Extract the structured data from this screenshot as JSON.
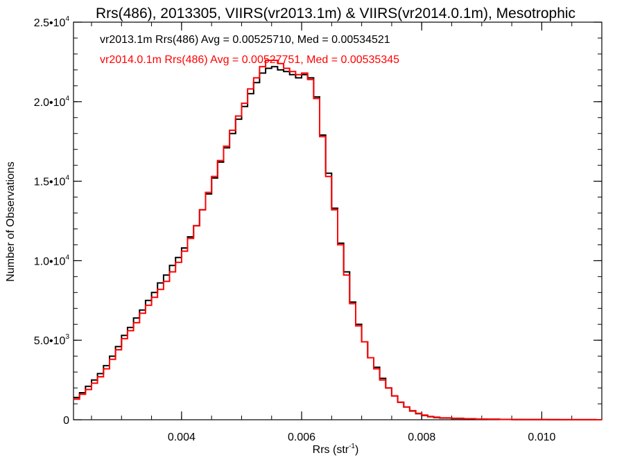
{
  "chart_data": {
    "type": "line",
    "title": "Rrs(486), 2013305, VIIRS(vr2013.1m) & VIIRS(vr2014.0.1m), Mesotrophic",
    "xlabel": "Rrs (str",
    "xlabel_sup": "-1",
    "xlabel_end": ")",
    "ylabel": "Number of Observations",
    "xlim": [
      0.0022,
      0.011
    ],
    "ylim": [
      0,
      25000
    ],
    "x_ticks": [
      {
        "value": 0.004,
        "label": "0.004"
      },
      {
        "value": 0.006,
        "label": "0.006"
      },
      {
        "value": 0.008,
        "label": "0.008"
      },
      {
        "value": 0.01,
        "label": "0.010"
      }
    ],
    "y_ticks": [
      {
        "value": 0,
        "mant": "0",
        "exp": ""
      },
      {
        "value": 5000,
        "mant": "5.0•10",
        "exp": "3"
      },
      {
        "value": 10000,
        "mant": "1.0•10",
        "exp": "4"
      },
      {
        "value": 15000,
        "mant": "1.5•10",
        "exp": "4"
      },
      {
        "value": 20000,
        "mant": "2.0•10",
        "exp": "4"
      },
      {
        "value": 25000,
        "mant": "2.5•10",
        "exp": "4"
      }
    ],
    "annotations": [
      {
        "text": "vr2013.1m Rrs(486) Avg = 0.00525710, Med = 0.00534521",
        "color": "#000000"
      },
      {
        "text": "vr2014.0.1m Rrs(486) Avg = 0.00527751, Med = 0.00535345",
        "color": "#ff0000"
      }
    ],
    "series": [
      {
        "color": "#000000",
        "x": [
          0.0022,
          0.0023,
          0.0024,
          0.0025,
          0.0026,
          0.0027,
          0.0028,
          0.0029,
          0.003,
          0.0031,
          0.0032,
          0.0033,
          0.0034,
          0.0035,
          0.0036,
          0.0037,
          0.0038,
          0.0039,
          0.004,
          0.0041,
          0.0042,
          0.0043,
          0.0044,
          0.0045,
          0.0046,
          0.0047,
          0.0048,
          0.0049,
          0.005,
          0.0051,
          0.0052,
          0.0053,
          0.0054,
          0.0055,
          0.0056,
          0.0057,
          0.0058,
          0.0059,
          0.006,
          0.0061,
          0.0062,
          0.0063,
          0.0064,
          0.0065,
          0.0066,
          0.0067,
          0.0068,
          0.0069,
          0.007,
          0.0071,
          0.0072,
          0.0073,
          0.0074,
          0.0075,
          0.0076,
          0.0077,
          0.0078,
          0.0079,
          0.008,
          0.0081,
          0.0082,
          0.0083,
          0.0085,
          0.0087,
          0.0089,
          0.0091,
          0.0093,
          0.0095,
          0.0097,
          0.0099,
          0.0101,
          0.0103,
          0.0105,
          0.0107,
          0.0109,
          0.011
        ],
        "y": [
          1400,
          1700,
          2100,
          2500,
          2900,
          3400,
          4000,
          4600,
          5300,
          5800,
          6400,
          6900,
          7500,
          8000,
          8600,
          9100,
          9700,
          10200,
          10800,
          11500,
          12200,
          13200,
          14200,
          15200,
          16200,
          17100,
          18000,
          18900,
          19700,
          20500,
          21200,
          21800,
          22100,
          22200,
          22000,
          21900,
          21700,
          21500,
          21700,
          21500,
          20300,
          17900,
          15500,
          13300,
          11100,
          9300,
          7400,
          6000,
          4900,
          3900,
          3300,
          2600,
          2000,
          1500,
          1100,
          800,
          550,
          380,
          270,
          190,
          140,
          110,
          80,
          60,
          40,
          30,
          20,
          15,
          10,
          8,
          6,
          5,
          4,
          3,
          2,
          2
        ]
      },
      {
        "color": "#ff0000",
        "x": [
          0.0022,
          0.0023,
          0.0024,
          0.0025,
          0.0026,
          0.0027,
          0.0028,
          0.0029,
          0.003,
          0.0031,
          0.0032,
          0.0033,
          0.0034,
          0.0035,
          0.0036,
          0.0037,
          0.0038,
          0.0039,
          0.004,
          0.0041,
          0.0042,
          0.0043,
          0.0044,
          0.0045,
          0.0046,
          0.0047,
          0.0048,
          0.0049,
          0.005,
          0.0051,
          0.0052,
          0.0053,
          0.0054,
          0.0055,
          0.0056,
          0.0057,
          0.0058,
          0.0059,
          0.006,
          0.0061,
          0.0062,
          0.0063,
          0.0064,
          0.0065,
          0.0066,
          0.0067,
          0.0068,
          0.0069,
          0.007,
          0.0071,
          0.0072,
          0.0073,
          0.0074,
          0.0075,
          0.0076,
          0.0077,
          0.0078,
          0.0079,
          0.008,
          0.0081,
          0.0082,
          0.0083,
          0.0085,
          0.0087,
          0.0089,
          0.0091,
          0.0093,
          0.0095,
          0.0097,
          0.0099,
          0.0101,
          0.0103,
          0.0105,
          0.0107,
          0.0109,
          0.011
        ],
        "y": [
          1300,
          1600,
          1900,
          2300,
          2700,
          3200,
          3800,
          4400,
          5100,
          5600,
          6100,
          6700,
          7200,
          7700,
          8200,
          8700,
          9300,
          9900,
          10600,
          11400,
          12200,
          13200,
          14300,
          15300,
          16300,
          17200,
          18200,
          19100,
          19900,
          20800,
          21500,
          22200,
          22600,
          22600,
          22400,
          22100,
          21900,
          21700,
          21800,
          21400,
          20200,
          17800,
          15300,
          13200,
          11000,
          9100,
          7300,
          5900,
          4900,
          3900,
          3200,
          2500,
          2000,
          1500,
          1100,
          800,
          570,
          400,
          290,
          210,
          160,
          120,
          90,
          65,
          45,
          30,
          22,
          16,
          12,
          9,
          7,
          5,
          4,
          3,
          2,
          2
        ]
      }
    ]
  }
}
